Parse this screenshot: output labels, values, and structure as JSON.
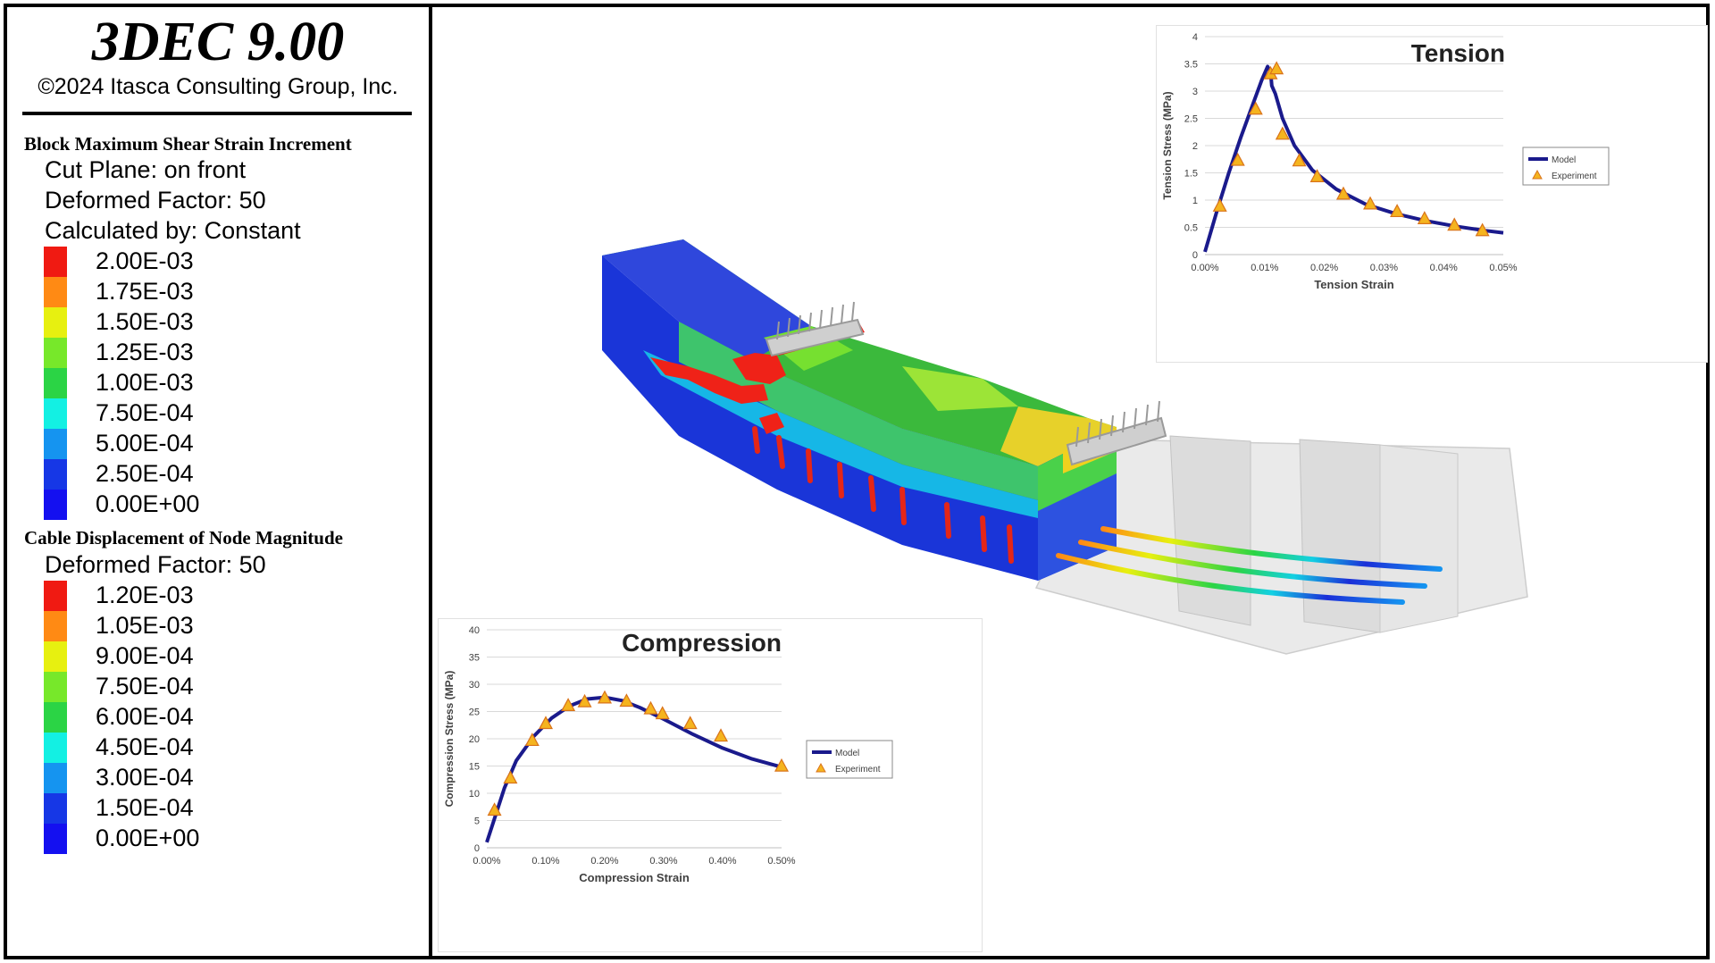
{
  "app": {
    "title": "3DEC 9.00",
    "copyright": "©2024 Itasca Consulting Group, Inc."
  },
  "legend": {
    "block_section": {
      "title": "Block  Maximum Shear Strain Increment",
      "cut_plane": "Cut Plane: on front",
      "deformed_factor": "Deformed Factor: 50",
      "calculated_by": "Calculated by: Constant",
      "levels": [
        {
          "label": "2.00E-03",
          "color": "#f01a12"
        },
        {
          "label": "1.75E-03",
          "color": "#ff8a14"
        },
        {
          "label": "1.50E-03",
          "color": "#e7f010"
        },
        {
          "label": "1.25E-03",
          "color": "#77e82a"
        },
        {
          "label": "1.00E-03",
          "color": "#2bd445"
        },
        {
          "label": "7.50E-04",
          "color": "#13f0e3"
        },
        {
          "label": "5.00E-04",
          "color": "#1594f0"
        },
        {
          "label": "2.50E-04",
          "color": "#1637e6"
        },
        {
          "label": "0.00E+00",
          "color": "#1410f0"
        }
      ]
    },
    "cable_section": {
      "title": "Cable Displacement of Node Magnitude",
      "deformed_factor": "Deformed Factor: 50",
      "levels": [
        {
          "label": "1.20E-03",
          "color": "#f01a12"
        },
        {
          "label": "1.05E-03",
          "color": "#ff8a14"
        },
        {
          "label": "9.00E-04",
          "color": "#e7f010"
        },
        {
          "label": "7.50E-04",
          "color": "#77e82a"
        },
        {
          "label": "6.00E-04",
          "color": "#2bd445"
        },
        {
          "label": "4.50E-04",
          "color": "#13f0e3"
        },
        {
          "label": "3.00E-04",
          "color": "#1594f0"
        },
        {
          "label": "1.50E-04",
          "color": "#1637e6"
        },
        {
          "label": "0.00E+00",
          "color": "#1410f0"
        }
      ]
    }
  },
  "chart_data": [
    {
      "type": "line",
      "title": "Tension",
      "xlabel": "Tension Strain",
      "ylabel": "Tension  Stress (MPa)",
      "xlim": [
        0,
        0.05
      ],
      "ylim": [
        0,
        4
      ],
      "x_ticks": [
        "0.00%",
        "0.01%",
        "0.02%",
        "0.03%",
        "0.04%",
        "0.05%"
      ],
      "y_ticks": [
        "0",
        "0.5",
        "1",
        "1.5",
        "2",
        "2.5",
        "3",
        "3.5",
        "4"
      ],
      "legend_position": "right",
      "series": [
        {
          "name": "Model",
          "kind": "line",
          "color": "#1a1a8c",
          "points": [
            [
              0,
              0.05
            ],
            [
              0.002,
              0.8
            ],
            [
              0.004,
              1.5
            ],
            [
              0.006,
              2.15
            ],
            [
              0.008,
              2.75
            ],
            [
              0.0095,
              3.2
            ],
            [
              0.0105,
              3.45
            ],
            [
              0.011,
              3.35
            ],
            [
              0.0112,
              3.1
            ],
            [
              0.0118,
              2.95
            ],
            [
              0.013,
              2.5
            ],
            [
              0.015,
              2.0
            ],
            [
              0.018,
              1.55
            ],
            [
              0.022,
              1.2
            ],
            [
              0.027,
              0.92
            ],
            [
              0.032,
              0.75
            ],
            [
              0.037,
              0.62
            ],
            [
              0.042,
              0.52
            ],
            [
              0.047,
              0.44
            ],
            [
              0.05,
              0.4
            ]
          ]
        },
        {
          "name": "Experiment",
          "kind": "marker",
          "color": "#f5b41e",
          "points": [
            [
              0.0025,
              0.88
            ],
            [
              0.0055,
              1.72
            ],
            [
              0.0085,
              2.66
            ],
            [
              0.011,
              3.31
            ],
            [
              0.012,
              3.4
            ],
            [
              0.013,
              2.2
            ],
            [
              0.0158,
              1.71
            ],
            [
              0.0188,
              1.42
            ],
            [
              0.0232,
              1.1
            ],
            [
              0.0277,
              0.92
            ],
            [
              0.0322,
              0.78
            ],
            [
              0.0368,
              0.65
            ],
            [
              0.0418,
              0.53
            ],
            [
              0.0465,
              0.43
            ]
          ]
        }
      ]
    },
    {
      "type": "line",
      "title": "Compression",
      "xlabel": "Compression Strain",
      "ylabel": "Compression Stress (MPa)",
      "xlim": [
        0,
        0.5
      ],
      "ylim": [
        0,
        40
      ],
      "x_ticks": [
        "0.00%",
        "0.10%",
        "0.20%",
        "0.30%",
        "0.40%",
        "0.50%"
      ],
      "y_ticks": [
        "0",
        "5",
        "10",
        "15",
        "20",
        "25",
        "30",
        "35",
        "40"
      ],
      "legend_position": "right",
      "series": [
        {
          "name": "Model",
          "kind": "line",
          "color": "#1a1a8c",
          "points": [
            [
              0,
              1
            ],
            [
              0.015,
              6
            ],
            [
              0.03,
              11
            ],
            [
              0.05,
              16
            ],
            [
              0.08,
              20.5
            ],
            [
              0.11,
              23.8
            ],
            [
              0.14,
              26
            ],
            [
              0.17,
              27.3
            ],
            [
              0.2,
              27.6
            ],
            [
              0.23,
              27
            ],
            [
              0.26,
              25.7
            ],
            [
              0.3,
              23.6
            ],
            [
              0.35,
              20.8
            ],
            [
              0.4,
              18.3
            ],
            [
              0.45,
              16.3
            ],
            [
              0.5,
              14.8
            ]
          ]
        },
        {
          "name": "Experiment",
          "kind": "marker",
          "color": "#f5b41e",
          "points": [
            [
              0.013,
              6.8
            ],
            [
              0.04,
              12.7
            ],
            [
              0.077,
              19.6
            ],
            [
              0.1,
              22.7
            ],
            [
              0.138,
              26
            ],
            [
              0.166,
              26.7
            ],
            [
              0.2,
              27.4
            ],
            [
              0.237,
              26.8
            ],
            [
              0.278,
              25.4
            ],
            [
              0.298,
              24.5
            ],
            [
              0.345,
              22.7
            ],
            [
              0.397,
              20.4
            ],
            [
              0.5,
              14.9
            ]
          ]
        }
      ]
    }
  ]
}
